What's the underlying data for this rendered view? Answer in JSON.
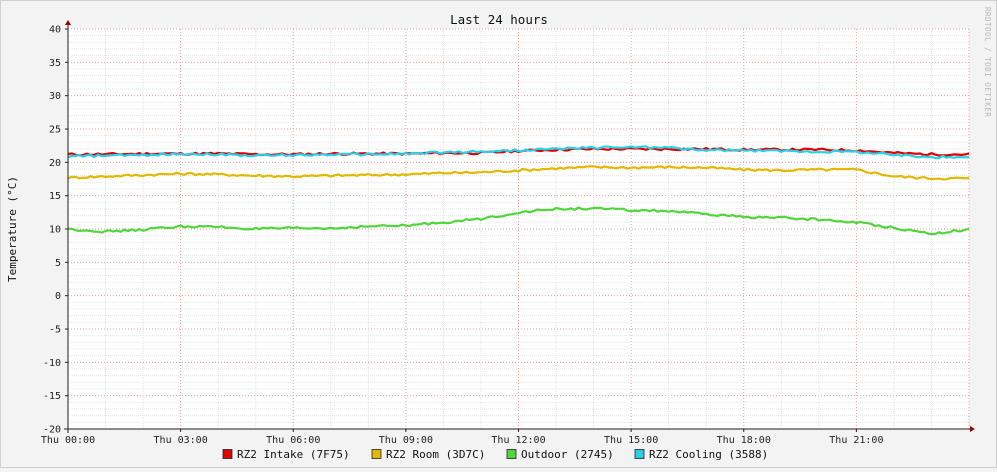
{
  "chart_data": {
    "type": "line",
    "title": "Last 24 hours",
    "ylabel": "Temperature (°C)",
    "watermark": "RRDTOOL / TOBI OETIKER",
    "ylim": [
      -20,
      40
    ],
    "yticks": [
      40,
      35,
      30,
      25,
      20,
      15,
      10,
      5,
      0,
      -5,
      -10,
      -15,
      -20
    ],
    "x_tick_labels": [
      "Thu 00:00",
      "Thu 03:00",
      "Thu 06:00",
      "Thu 09:00",
      "Thu 12:00",
      "Thu 15:00",
      "Thu 18:00",
      "Thu 21:00"
    ],
    "x_hours": [
      0,
      1,
      2,
      3,
      4,
      5,
      6,
      7,
      8,
      9,
      10,
      11,
      12,
      13,
      14,
      15,
      16,
      17,
      18,
      19,
      20,
      21,
      22,
      23,
      24
    ],
    "grid": true,
    "legend_position": "bottom",
    "series": [
      {
        "name": "RZ2 Intake (7F75)",
        "color": "#e00000",
        "values": [
          21.2,
          21.2,
          21.3,
          21.3,
          21.3,
          21.2,
          21.2,
          21.3,
          21.3,
          21.3,
          21.4,
          21.4,
          21.7,
          21.9,
          22.0,
          22.0,
          22.0,
          22.0,
          21.9,
          21.9,
          21.9,
          21.8,
          21.4,
          21.2,
          21.2
        ]
      },
      {
        "name": "RZ2 Room (3D7C)",
        "color": "#e3b800",
        "values": [
          17.7,
          17.9,
          18.1,
          18.3,
          18.2,
          18.0,
          17.9,
          18.0,
          18.1,
          18.2,
          18.4,
          18.5,
          18.8,
          19.1,
          19.3,
          19.2,
          19.3,
          19.2,
          18.9,
          18.8,
          18.9,
          18.9,
          17.9,
          17.6,
          17.6
        ]
      },
      {
        "name": "Outdoor (2745)",
        "color": "#4fd63a",
        "values": [
          10.0,
          9.6,
          9.9,
          10.4,
          10.3,
          10.0,
          10.1,
          10.1,
          10.4,
          10.5,
          11.0,
          11.5,
          12.5,
          13.0,
          13.1,
          12.8,
          12.7,
          12.2,
          11.8,
          11.7,
          11.4,
          11.0,
          10.2,
          9.3,
          10.0
        ]
      },
      {
        "name": "RZ2 Cooling (3588)",
        "color": "#2ad0e8",
        "values": [
          20.9,
          21.0,
          21.1,
          21.3,
          21.2,
          21.0,
          21.1,
          21.2,
          21.2,
          21.3,
          21.5,
          21.6,
          21.8,
          22.0,
          22.2,
          22.3,
          22.2,
          21.8,
          21.8,
          21.7,
          21.6,
          21.6,
          21.1,
          20.8,
          20.8
        ]
      }
    ]
  }
}
